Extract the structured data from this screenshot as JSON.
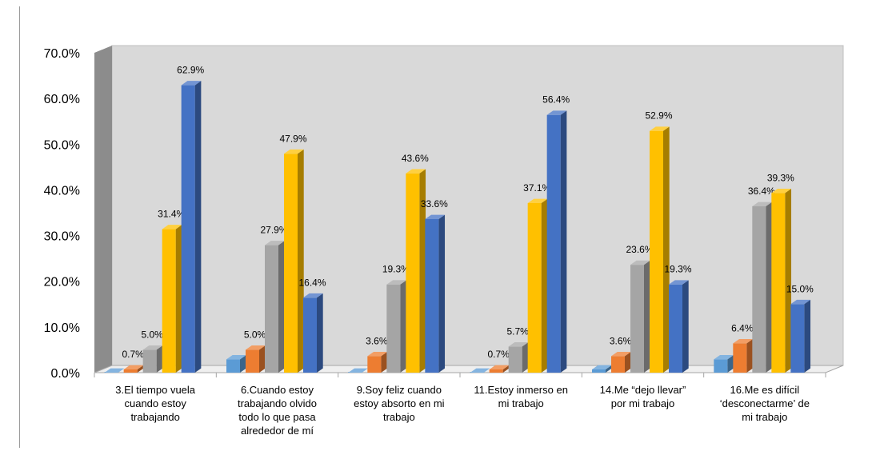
{
  "chart_data": {
    "type": "bar",
    "title": "",
    "xlabel": "",
    "ylabel": "",
    "ylim": [
      0,
      70
    ],
    "y_ticks": [
      "0.0%",
      "10.0%",
      "20.0%",
      "30.0%",
      "40.0%",
      "50.0%",
      "60.0%",
      "70.0%"
    ],
    "grid": false,
    "style": "3d-clustered-column",
    "categories": [
      [
        "3.El tiempo vuela",
        "cuando estoy",
        "trabajando"
      ],
      [
        "6.Cuando estoy",
        "trabajando  olvido",
        "todo  lo  que  pasa",
        "alrededor de mí"
      ],
      [
        "9.Soy feliz cuando",
        "estoy absorto en mi",
        "trabajo"
      ],
      [
        "11.Estoy inmerso en",
        "mi trabajo"
      ],
      [
        "14.Me “dejo llevar”",
        "por mi trabajo"
      ],
      [
        "16.Me es difícil",
        "‘desconectarme’ de",
        "mi trabajo"
      ]
    ],
    "series": [
      {
        "color": "#5b9bd5",
        "values": [
          0.0,
          2.9,
          0.0,
          0.0,
          0.7,
          2.9
        ],
        "labels": [
          "",
          "",
          "",
          "",
          "",
          ""
        ]
      },
      {
        "color": "#ed7d31",
        "values": [
          0.7,
          5.0,
          3.6,
          0.7,
          3.6,
          6.4
        ],
        "labels": [
          "0.7%",
          "5.0%",
          "3.6%",
          "0.7%",
          "3.6%",
          "6.4%"
        ]
      },
      {
        "color": "#a5a5a5",
        "values": [
          5.0,
          27.9,
          19.3,
          5.7,
          23.6,
          36.4
        ],
        "labels": [
          "5.0%",
          "27.9%",
          "19.3%",
          "5.7%",
          "23.6%",
          "36.4%"
        ]
      },
      {
        "color": "#ffc000",
        "values": [
          31.4,
          47.9,
          43.6,
          37.1,
          52.9,
          39.3
        ],
        "labels": [
          "31.4%",
          "47.9%",
          "43.6%",
          "37.1%",
          "52.9%",
          "39.3%"
        ]
      },
      {
        "color": "#4472c4",
        "values": [
          62.9,
          16.4,
          33.6,
          56.4,
          19.3,
          15.0
        ],
        "labels": [
          "62.9%",
          "16.4%",
          "33.6%",
          "56.4%",
          "19.3%",
          "15.0%"
        ]
      }
    ]
  }
}
